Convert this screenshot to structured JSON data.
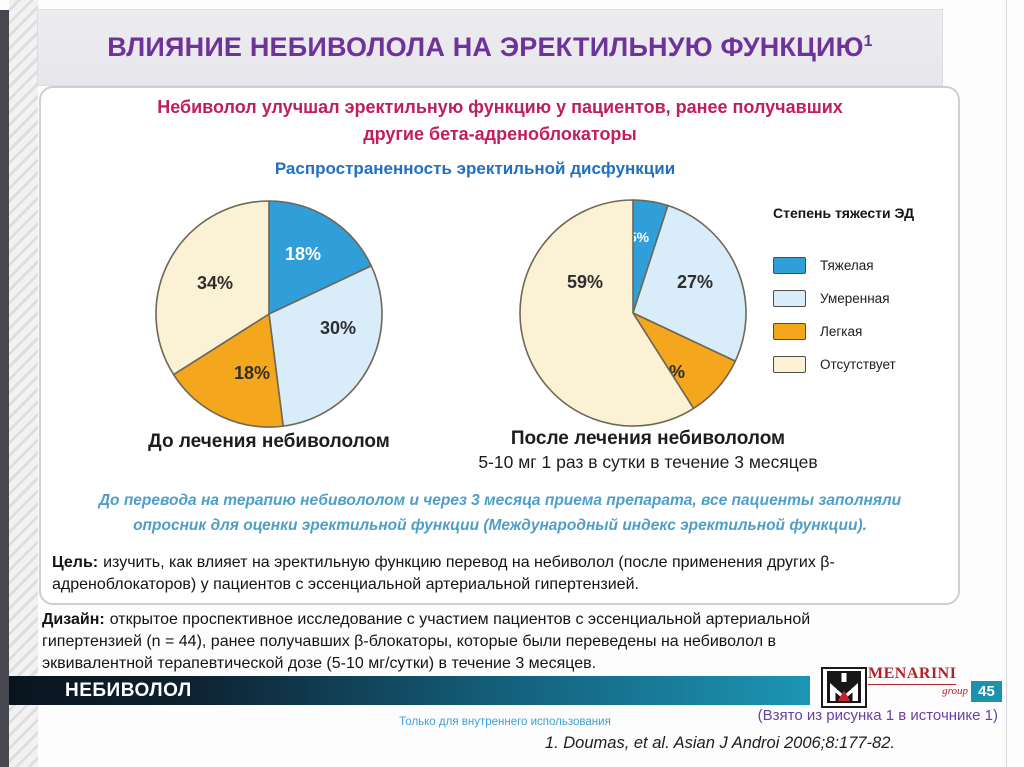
{
  "slide": {
    "title": "ВЛИЯНИЕ НЕБИВОЛОЛА НА ЭРЕКТИЛЬНУЮ ФУНКЦИЮ",
    "title_superscript": "1",
    "subtitle_lines": [
      "Небиволол улучшал эректильную функцию у пациентов, ранее получавших",
      "другие бета-адреноблокаторы"
    ],
    "chart_heading": "Распространенность эректильной дисфункции"
  },
  "chart_data": [
    {
      "type": "pie",
      "title": "До лечения небивололом",
      "categories": [
        "Тяжелая",
        "Умеренная",
        "Легкая",
        "Отсутствует"
      ],
      "values": [
        18,
        30,
        18,
        34
      ],
      "labels": [
        "18%",
        "30%",
        "18%",
        "34%"
      ],
      "label_positions": [
        [
          150,
          56
        ],
        [
          185,
          130
        ],
        [
          99,
          175
        ],
        [
          62,
          85
        ]
      ]
    },
    {
      "type": "pie",
      "title": "После лечения небивололом",
      "subtitle": "5-10 мг 1 раз в сутки в течение 3 месяцев",
      "categories": [
        "Тяжелая",
        "Умеренная",
        "Легкая",
        "Отсутствует"
      ],
      "values": [
        5,
        27,
        9,
        59
      ],
      "labels": [
        "5%",
        "27%",
        "9%",
        "59%"
      ],
      "label_positions": [
        [
          122,
          40
        ],
        [
          178,
          85
        ],
        [
          155,
          175
        ],
        [
          68,
          85
        ]
      ]
    }
  ],
  "chart_style": {
    "slice_fills": [
      "#2f9ed9",
      "#d9ecf9",
      "#f4a71d",
      "#fbf1d5"
    ],
    "slice_label_colors": [
      "#ffffff",
      "#2e2e2e",
      "#2e2e2e",
      "#2e2e2e"
    ],
    "stroke": "#6f6854"
  },
  "legend": {
    "title": "Степень тяжести ЭД",
    "items": [
      {
        "label": "Тяжелая",
        "color": "#2f9ed9"
      },
      {
        "label": "Умеренная",
        "color": "#d9ecf9"
      },
      {
        "label": "Легкая",
        "color": "#f4a71d"
      },
      {
        "label": "Отсутствует",
        "color": "#fbf1d5"
      }
    ]
  },
  "note": {
    "lines": [
      "До перевода на терапию небивололом и через 3 месяца приема препарата, все пациенты заполняли",
      "опросник для оценки эректильной функции (Международный индекс эректильной функции)."
    ]
  },
  "goal": {
    "label": "Цель:",
    "lines": [
      "изучить, как влияет на эректильную функцию перевод на небиволол (после применения других β-",
      "адреноблокаторов) у пациентов с эссенциальной артериальной гипертензией."
    ]
  },
  "design": {
    "label": "Дизайн:",
    "lines": [
      "открытое проспективное исследование с участием  пациентов с эссенциальной артериальной",
      "гипертензией (n = 44), ранее получавших β-блокаторы, которые были переведены на небиволол в",
      "эквивалентной терапевтической дозе (5-10 мг/сутки) в течение 3 месяцев."
    ]
  },
  "footer": {
    "drug_name": "НЕБИВОЛОЛ",
    "page_number": "45",
    "logo_name": "MENARINI",
    "logo_sub": "group",
    "internal_use": "Только для внутреннего использования",
    "source_note": "(Взято из рисунка 1 в источнике 1)",
    "reference": "1. Doumas, et al. Asian J Androi 2006;8:177-82."
  },
  "colors": {
    "title_purple": "#6e3399",
    "subtitle_crimson": "#c01e5e",
    "heading_blue": "#2170c4",
    "note_blue": "#4e9ec9",
    "footer_teal": "#1b93ae",
    "source_note_purple": "#6a3fa2",
    "internal_blue": "#3d9fd8",
    "logo_red": "#b22227"
  }
}
